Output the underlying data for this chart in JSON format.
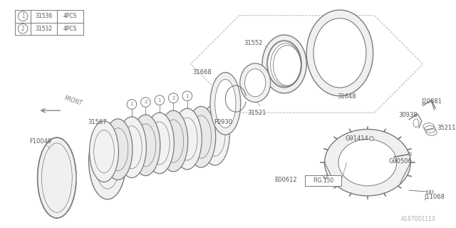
{
  "background_color": "#ffffff",
  "line_color": "#7a7a7a",
  "text_color": "#555555",
  "watermark": "A167001113",
  "parts_table": [
    {
      "symbol": "1",
      "part": "31536",
      "qty": "4PCS"
    },
    {
      "symbol": "2",
      "part": "31532",
      "qty": "4PCS"
    }
  ]
}
